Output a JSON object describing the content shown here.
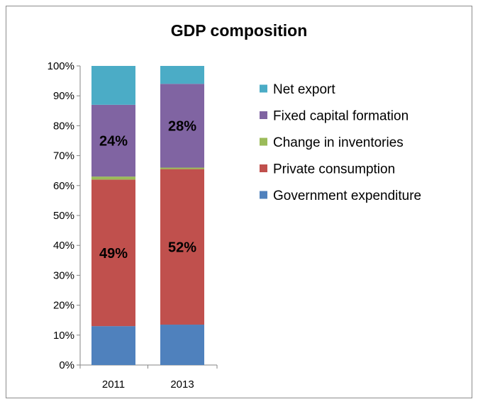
{
  "chart_data": {
    "type": "bar",
    "stacked": true,
    "percent_stacked": true,
    "title": "GDP composition",
    "categories": [
      "2011",
      "2013"
    ],
    "y_ticks": [
      "0%",
      "10%",
      "20%",
      "30%",
      "40%",
      "50%",
      "60%",
      "70%",
      "80%",
      "90%",
      "100%"
    ],
    "ylim": [
      0,
      100
    ],
    "grid": false,
    "legend_position": "right",
    "series": [
      {
        "name": "Government expenditure",
        "color": "#4f81bd",
        "values": [
          13,
          13.5
        ],
        "labels": [
          "",
          ""
        ]
      },
      {
        "name": "Private consumption",
        "color": "#c0504d",
        "values": [
          49,
          52
        ],
        "labels": [
          "49%",
          "52%"
        ]
      },
      {
        "name": "Change in inventories",
        "color": "#9bbb59",
        "values": [
          1,
          0.5
        ],
        "labels": [
          "",
          ""
        ]
      },
      {
        "name": "Fixed capital formation",
        "color": "#8064a2",
        "values": [
          24,
          28
        ],
        "labels": [
          "24%",
          "28%"
        ]
      },
      {
        "name": "Net export",
        "color": "#4bacc6",
        "values": [
          13,
          6
        ],
        "labels": [
          "",
          ""
        ]
      }
    ],
    "legend_order": [
      "Net export",
      "Fixed capital formation",
      "Change in inventories",
      "Private consumption",
      "Government expenditure"
    ]
  }
}
